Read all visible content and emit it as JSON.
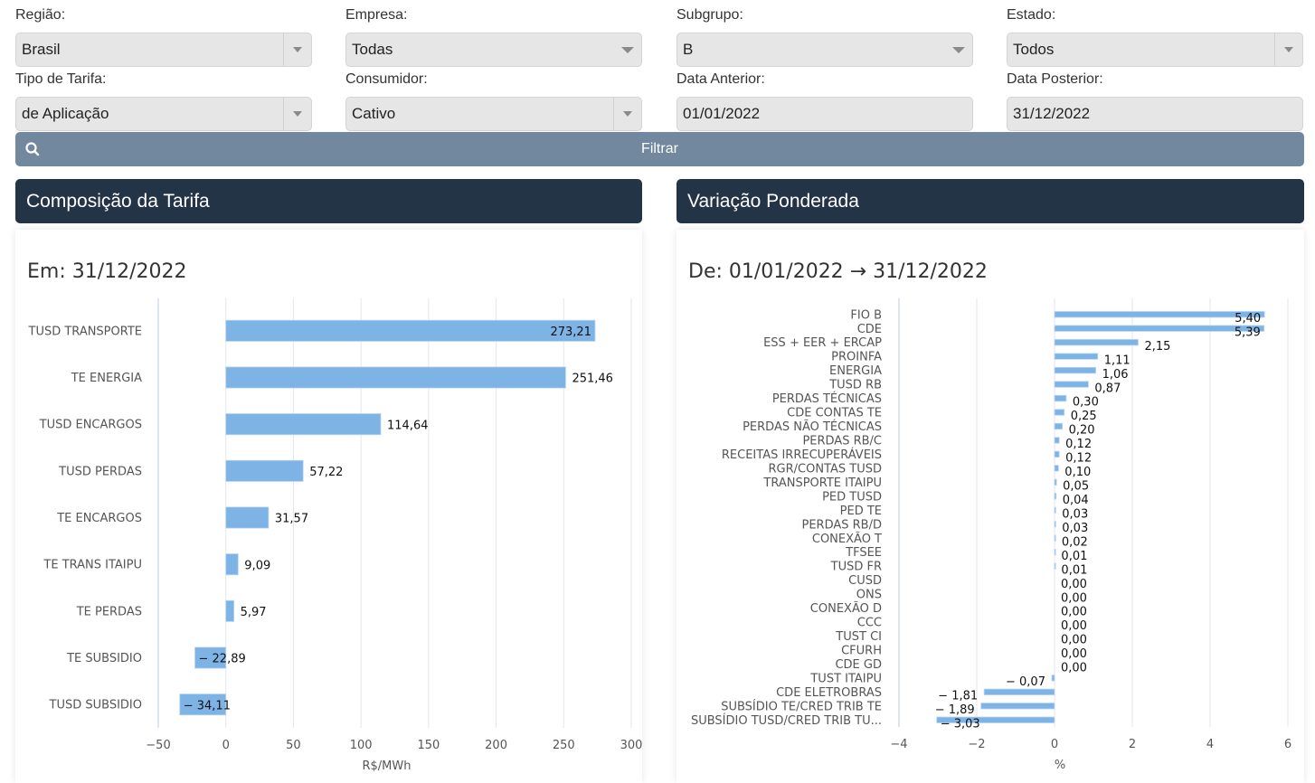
{
  "filters": {
    "regiao": {
      "label": "Região:",
      "value": "Brasil"
    },
    "empresa": {
      "label": "Empresa:",
      "value": "Todas"
    },
    "subgrupo": {
      "label": "Subgrupo:",
      "value": "B"
    },
    "estado": {
      "label": "Estado:",
      "value": "Todos"
    },
    "tipo_tarifa": {
      "label": "Tipo de Tarifa:",
      "value": "de Aplicação"
    },
    "consumidor": {
      "label": "Consumidor:",
      "value": "Cativo"
    },
    "data_anterior": {
      "label": "Data Anterior:",
      "value": "01/01/2022"
    },
    "data_posterior": {
      "label": "Data Posterior:",
      "value": "31/12/2022"
    },
    "filter_button": "Filtrar",
    "filter_icon": "search-icon"
  },
  "panels": {
    "left": {
      "title": "Composição da Tarifa",
      "subtitle": "Em: 31/12/2022"
    },
    "right": {
      "title": "Variação Ponderada",
      "subtitle": "De: 01/01/2022 → 31/12/2022"
    }
  },
  "colors": {
    "bar": "#7eb3e6",
    "header": "#243447",
    "filter_button": "#71889f"
  },
  "chart_data": [
    {
      "type": "bar",
      "orientation": "horizontal",
      "title": "Em: 31/12/2022",
      "xlabel": "R$/MWh",
      "ylabel": "",
      "xlim": [
        -50,
        300
      ],
      "xticks": [
        -50,
        0,
        50,
        100,
        150,
        200,
        250,
        300
      ],
      "xtick_labels": [
        "−50",
        "0",
        "50",
        "100",
        "150",
        "200",
        "250",
        "300"
      ],
      "grid": true,
      "categories": [
        "TUSD TRANSPORTE",
        "TE ENERGIA",
        "TUSD ENCARGOS",
        "TUSD PERDAS",
        "TE ENCARGOS",
        "TE TRANS ITAIPU",
        "TE PERDAS",
        "TE SUBSIDIO",
        "TUSD SUBSIDIO"
      ],
      "values": [
        273.21,
        251.46,
        114.64,
        57.22,
        31.57,
        9.09,
        5.97,
        -22.89,
        -34.11
      ],
      "value_labels": [
        "273,21",
        "251,46",
        "114,64",
        "57,22",
        "31,57",
        "9,09",
        "5,97",
        "− 22,89",
        "− 34,11"
      ]
    },
    {
      "type": "bar",
      "orientation": "horizontal",
      "title": "De: 01/01/2022 → 31/12/2022",
      "xlabel": "%",
      "ylabel": "",
      "xlim": [
        -4,
        6
      ],
      "xticks": [
        -4,
        -2,
        0,
        2,
        4,
        6
      ],
      "xtick_labels": [
        "−4",
        "−2",
        "0",
        "2",
        "4",
        "6"
      ],
      "grid": true,
      "categories": [
        "FIO B",
        "CDE",
        "ESS + EER + ERCAP",
        "PROINFA",
        "ENERGIA",
        "TUSD RB",
        "PERDAS TÉCNICAS",
        "CDE CONTAS TE",
        "PERDAS NÃO TÉCNICAS",
        "PERDAS RB/C",
        "RECEITAS IRRECUPERÁVEIS",
        "RGR/CONTAS TUSD",
        "TRANSPORTE ITAIPU",
        "PED TUSD",
        "PED TE",
        "PERDAS RB/D",
        "CONEXÃO T",
        "TFSEE",
        "TUSD FR",
        "CUSD",
        "ONS",
        "CONEXÃO D",
        "CCC",
        "TUST CI",
        "CFURH",
        "CDE GD",
        "TUST ITAIPU",
        "CDE ELETROBRAS",
        "SUBSÍDIO TE/CRED TRIB TE",
        "SUBSÍDIO TUSD/CRED TRIB TU..."
      ],
      "values": [
        5.4,
        5.39,
        2.15,
        1.11,
        1.06,
        0.87,
        0.3,
        0.25,
        0.2,
        0.12,
        0.12,
        0.1,
        0.05,
        0.04,
        0.03,
        0.03,
        0.02,
        0.01,
        0.01,
        0.0,
        0.0,
        0.0,
        0.0,
        0.0,
        0.0,
        0.0,
        -0.07,
        -1.81,
        -1.89,
        -3.03
      ],
      "value_labels": [
        "5,40",
        "5,39",
        "2,15",
        "1,11",
        "1,06",
        "0,87",
        "0,30",
        "0,25",
        "0,20",
        "0,12",
        "0,12",
        "0,10",
        "0,05",
        "0,04",
        "0,03",
        "0,03",
        "0,02",
        "0,01",
        "0,01",
        "0,00",
        "0,00",
        "0,00",
        "0,00",
        "0,00",
        "0,00",
        "0,00",
        "− 0,07",
        "− 1,81",
        "− 1,89",
        "− 3,03"
      ]
    }
  ]
}
